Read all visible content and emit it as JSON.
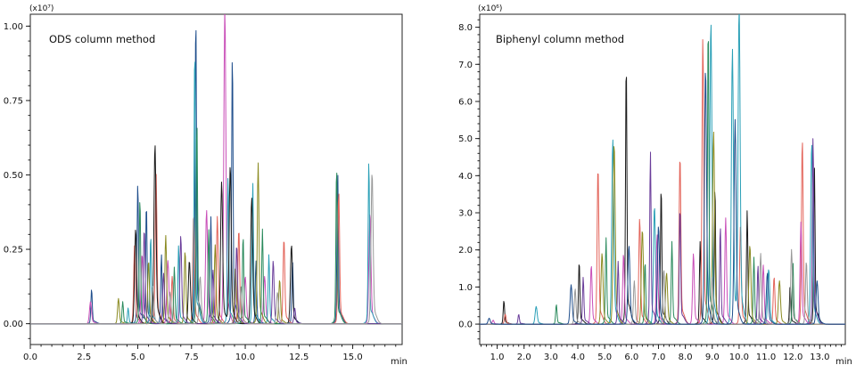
{
  "chart_data": [
    {
      "type": "line",
      "title": "ODS column method",
      "xlabel": "min",
      "yscale_label": "(x10⁷)",
      "xlim": [
        0.0,
        17.3
      ],
      "ylim": [
        -0.07,
        1.04
      ],
      "xticks": [
        "0.0",
        "2.5",
        "5.0",
        "7.5",
        "10.0",
        "12.5",
        "15.0"
      ],
      "xtick_values": [
        0.0,
        2.5,
        5.0,
        7.5,
        10.0,
        12.5,
        15.0
      ],
      "yticks": [
        "0.00",
        "0.25",
        "0.50",
        "0.75",
        "1.00"
      ],
      "ytick_values": [
        0.0,
        0.25,
        0.5,
        0.75,
        1.0
      ],
      "series": [
        {
          "color": "#1f4e8c",
          "peaks": [
            [
              2.85,
              0.11
            ],
            [
              5.0,
              0.45
            ],
            [
              5.4,
              0.38
            ],
            [
              6.1,
              0.22
            ],
            [
              7.7,
              0.98
            ],
            [
              8.4,
              0.34
            ],
            [
              9.4,
              0.86
            ],
            [
              10.5,
              0.2
            ],
            [
              12.2,
              0.2
            ],
            [
              14.3,
              0.49
            ]
          ]
        },
        {
          "color": "#e3645a",
          "peaks": [
            [
              4.85,
              0.25
            ],
            [
              5.85,
              0.48
            ],
            [
              6.6,
              0.15
            ],
            [
              7.6,
              0.35
            ],
            [
              8.7,
              0.34
            ],
            [
              9.7,
              0.3
            ],
            [
              11.8,
              0.27
            ],
            [
              14.35,
              0.42
            ]
          ]
        },
        {
          "color": "#c94fb8",
          "peaks": [
            [
              2.8,
              0.07
            ],
            [
              5.2,
              0.22
            ],
            [
              6.4,
              0.2
            ],
            [
              8.2,
              0.36
            ],
            [
              9.05,
              1.0
            ],
            [
              10.0,
              0.15
            ],
            [
              10.9,
              0.15
            ],
            [
              15.8,
              0.35
            ]
          ]
        },
        {
          "color": "#2ba0b7",
          "peaks": [
            [
              4.55,
              0.05
            ],
            [
              5.6,
              0.28
            ],
            [
              6.9,
              0.25
            ],
            [
              7.65,
              0.88
            ],
            [
              9.2,
              0.47
            ],
            [
              10.35,
              0.45
            ],
            [
              11.1,
              0.22
            ],
            [
              15.75,
              0.52
            ]
          ]
        },
        {
          "color": "#8a8a20",
          "peaks": [
            [
              4.1,
              0.08
            ],
            [
              5.5,
              0.2
            ],
            [
              6.3,
              0.28
            ],
            [
              7.2,
              0.23
            ],
            [
              8.6,
              0.25
            ],
            [
              9.55,
              0.18
            ],
            [
              10.6,
              0.51
            ],
            [
              11.6,
              0.14
            ]
          ]
        },
        {
          "color": "#1b1b1b",
          "peaks": [
            [
              4.9,
              0.3
            ],
            [
              5.8,
              0.57
            ],
            [
              7.4,
              0.2
            ],
            [
              8.9,
              0.45
            ],
            [
              9.3,
              0.5
            ],
            [
              10.3,
              0.4
            ],
            [
              12.15,
              0.25
            ]
          ]
        },
        {
          "color": "#2a8a5c",
          "peaks": [
            [
              4.3,
              0.07
            ],
            [
              5.1,
              0.4
            ],
            [
              6.7,
              0.18
            ],
            [
              7.75,
              0.65
            ],
            [
              8.3,
              0.3
            ],
            [
              9.9,
              0.28
            ],
            [
              10.8,
              0.3
            ],
            [
              14.25,
              0.5
            ]
          ]
        },
        {
          "color": "#6a3d9a",
          "peaks": [
            [
              5.3,
              0.3
            ],
            [
              6.2,
              0.16
            ],
            [
              7.0,
              0.28
            ],
            [
              8.5,
              0.17
            ],
            [
              9.6,
              0.25
            ],
            [
              11.3,
              0.2
            ],
            [
              12.3,
              0.05
            ]
          ]
        },
        {
          "color": "#999999",
          "peaks": [
            [
              5.7,
              0.12
            ],
            [
              6.5,
              0.1
            ],
            [
              7.9,
              0.15
            ],
            [
              9.8,
              0.12
            ],
            [
              11.5,
              0.1
            ],
            [
              15.9,
              0.48
            ]
          ]
        }
      ]
    },
    {
      "type": "line",
      "title": "Biphenyl column method",
      "xlabel": "min",
      "yscale_label": "(x10⁶)",
      "xlim": [
        0.35,
        13.95
      ],
      "ylim": [
        -0.55,
        8.35
      ],
      "xticks": [
        "1.0",
        "2.0",
        "3.0",
        "4.0",
        "5.0",
        "6.0",
        "7.0",
        "8.0",
        "9.0",
        "10.0",
        "11.0",
        "12.0",
        "13.0"
      ],
      "xtick_values": [
        1.0,
        2.0,
        3.0,
        4.0,
        5.0,
        6.0,
        7.0,
        8.0,
        9.0,
        10.0,
        11.0,
        12.0,
        13.0
      ],
      "yticks": [
        "0.0",
        "1.0",
        "2.0",
        "3.0",
        "4.0",
        "5.0",
        "6.0",
        "7.0",
        "8.0"
      ],
      "ytick_values": [
        0.0,
        1.0,
        2.0,
        3.0,
        4.0,
        5.0,
        6.0,
        7.0,
        8.0
      ],
      "series": [
        {
          "color": "#1b1b1b",
          "peaks": [
            [
              1.25,
              0.6
            ],
            [
              4.05,
              1.6
            ],
            [
              5.8,
              6.7
            ],
            [
              7.1,
              3.5
            ],
            [
              8.55,
              2.1
            ],
            [
              9.1,
              3.5
            ],
            [
              10.3,
              2.9
            ],
            [
              11.9,
              1.0
            ],
            [
              12.8,
              4.0
            ]
          ]
        },
        {
          "color": "#e3645a",
          "peaks": [
            [
              1.3,
              0.25
            ],
            [
              4.75,
              4.0
            ],
            [
              6.3,
              2.7
            ],
            [
              7.8,
              4.3
            ],
            [
              8.65,
              7.3
            ],
            [
              10.05,
              2.5
            ],
            [
              11.3,
              1.2
            ],
            [
              12.35,
              4.7
            ]
          ]
        },
        {
          "color": "#2ba0b7",
          "peaks": [
            [
              2.45,
              0.45
            ],
            [
              5.3,
              4.7
            ],
            [
              6.85,
              3.0
            ],
            [
              8.95,
              7.7
            ],
            [
              9.75,
              7.0
            ],
            [
              10.0,
              8.0
            ],
            [
              11.1,
              1.4
            ],
            [
              12.7,
              4.6
            ]
          ]
        },
        {
          "color": "#2a8a5c",
          "peaks": [
            [
              3.2,
              0.5
            ],
            [
              5.05,
              2.2
            ],
            [
              6.5,
              1.6
            ],
            [
              7.5,
              2.1
            ],
            [
              8.85,
              7.7
            ],
            [
              10.55,
              1.7
            ],
            [
              12.0,
              1.6
            ]
          ]
        },
        {
          "color": "#c94fb8",
          "peaks": [
            [
              0.85,
              0.1
            ],
            [
              4.5,
              1.5
            ],
            [
              5.7,
              1.8
            ],
            [
              6.95,
              2.3
            ],
            [
              8.3,
              1.8
            ],
            [
              9.5,
              2.7
            ],
            [
              10.9,
              1.5
            ],
            [
              12.3,
              2.6
            ]
          ]
        },
        {
          "color": "#8a8a20",
          "peaks": [
            [
              4.9,
              1.8
            ],
            [
              5.35,
              4.6
            ],
            [
              6.4,
              2.4
            ],
            [
              7.3,
              1.3
            ],
            [
              9.05,
              4.9
            ],
            [
              10.4,
              2.0
            ],
            [
              11.5,
              1.1
            ]
          ]
        },
        {
          "color": "#6a3d9a",
          "peaks": [
            [
              1.8,
              0.25
            ],
            [
              4.2,
              1.2
            ],
            [
              5.5,
              1.6
            ],
            [
              6.7,
              4.4
            ],
            [
              7.8,
              3.0
            ],
            [
              9.3,
              2.5
            ],
            [
              10.7,
              1.5
            ],
            [
              12.75,
              4.8
            ]
          ]
        },
        {
          "color": "#999999",
          "peaks": [
            [
              3.9,
              0.9
            ],
            [
              6.1,
              1.1
            ],
            [
              7.2,
              1.4
            ],
            [
              9.0,
              1.2
            ],
            [
              10.8,
              1.8
            ],
            [
              11.95,
              1.9
            ],
            [
              12.5,
              1.6
            ]
          ]
        },
        {
          "color": "#1f4e8c",
          "peaks": [
            [
              0.7,
              0.15
            ],
            [
              3.75,
              1.0
            ],
            [
              5.9,
              2.0
            ],
            [
              7.0,
              2.5
            ],
            [
              8.75,
              6.5
            ],
            [
              9.85,
              5.2
            ],
            [
              11.05,
              1.3
            ],
            [
              12.9,
              1.1
            ]
          ]
        }
      ]
    }
  ]
}
